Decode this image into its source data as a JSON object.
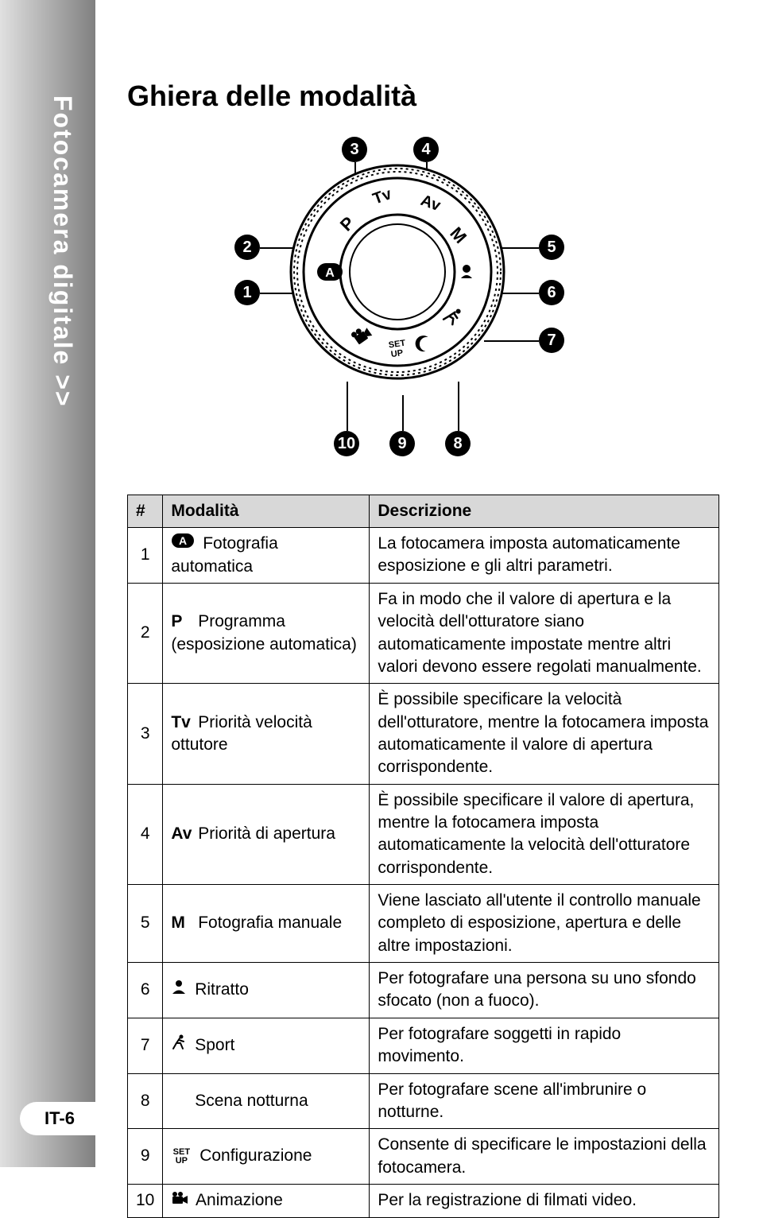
{
  "sidebar_label": "Fotocamera digitale >>",
  "page_number": "IT-6",
  "title": "Ghiera delle modalità",
  "callout_labels": [
    "1",
    "2",
    "3",
    "4",
    "5",
    "6",
    "7",
    "8",
    "9",
    "10"
  ],
  "table": {
    "headers": [
      "#",
      "Modalità",
      "Descrizione"
    ],
    "rows": [
      {
        "num": "1",
        "sym": "A",
        "label": "Fotografia automatica",
        "desc": "La fotocamera imposta automaticamente esposizione e gli altri parametri."
      },
      {
        "num": "2",
        "sym": "P",
        "label": "Programma (esposizione automatica)",
        "desc": "Fa in modo che il valore di apertura e la velocità dell'otturatore siano automaticamente impostate mentre altri valori devono essere regolati manualmente."
      },
      {
        "num": "3",
        "sym": "Tv",
        "label": "Priorità velocità ottutore",
        "desc": "È possibile specificare la velocità dell'otturatore, mentre la fotocamera imposta automaticamente il valore di apertura corrispondente."
      },
      {
        "num": "4",
        "sym": "Av",
        "label": "Priorità di apertura",
        "desc": "È possibile specificare il valore di apertura, mentre la fotocamera imposta automaticamente la velocità dell'otturatore corrispondente."
      },
      {
        "num": "5",
        "sym": "M",
        "label": "Fotografia manuale",
        "desc": "Viene lasciato all'utente il controllo manuale completo di esposizione, apertura e delle altre impostazioni."
      },
      {
        "num": "6",
        "sym": "portrait",
        "label": "Ritratto",
        "desc": "Per fotografare una persona su uno sfondo sfocato (non a fuoco)."
      },
      {
        "num": "7",
        "sym": "sport",
        "label": "Sport",
        "desc": "Per fotografare soggetti in rapido movimento."
      },
      {
        "num": "8",
        "sym": "night",
        "label": "Scena notturna",
        "desc": "Per fotografare scene all'imbrunire o notturne."
      },
      {
        "num": "9",
        "sym": "setup",
        "label": "Configurazione",
        "desc": "Consente di specificare le impostazioni della fotocamera."
      },
      {
        "num": "10",
        "sym": "movie",
        "label": "Animazione",
        "desc": "Per la registrazione di filmati video."
      }
    ]
  },
  "dial_positions": {
    "labels": [
      "A",
      "P",
      "Tv",
      "Av",
      "M"
    ],
    "setup_text": "SET UP"
  }
}
